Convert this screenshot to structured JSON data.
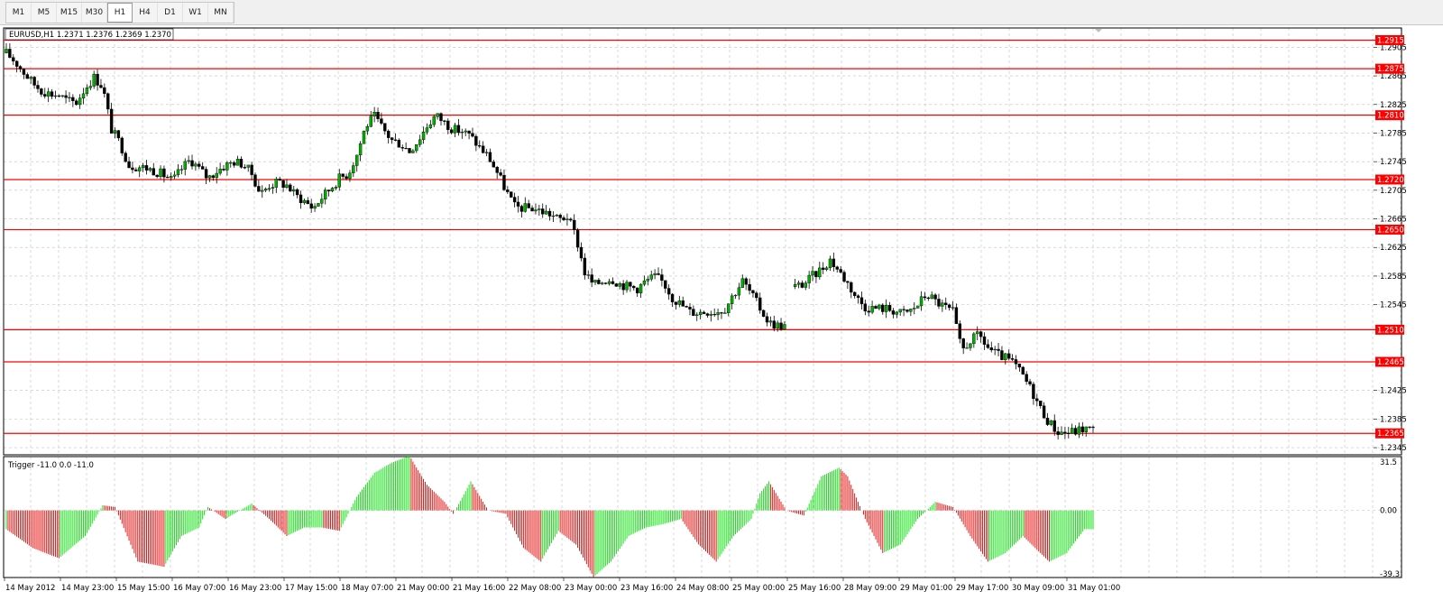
{
  "toolbar": {
    "timeframes": [
      {
        "label": "M1",
        "active": false
      },
      {
        "label": "M5",
        "active": false
      },
      {
        "label": "M15",
        "active": false
      },
      {
        "label": "M30",
        "active": false
      },
      {
        "label": "H1",
        "active": true
      },
      {
        "label": "H4",
        "active": false
      },
      {
        "label": "D1",
        "active": false
      },
      {
        "label": "W1",
        "active": false
      },
      {
        "label": "MN",
        "active": false
      }
    ]
  },
  "chart": {
    "header": "EURUSD,H1  1.2371 1.2376 1.2369 1.2370",
    "symbol": "EURUSD",
    "timeframe": "H1",
    "ohlc": {
      "open": 1.2371,
      "high": 1.2376,
      "low": 1.2369,
      "close": 1.237
    },
    "colors": {
      "bull": "#00b000",
      "bear": "#000000",
      "level": "#ff0000",
      "grid": "#c0c0c0",
      "hist_up": "#00e000",
      "hist_down": "#e00000"
    }
  },
  "price_axis": {
    "ticks": [
      "1.2905",
      "1.2865",
      "1.2825",
      "1.2785",
      "1.2745",
      "1.2705",
      "1.2665",
      "1.2625",
      "1.2585",
      "1.2545",
      "1.2425",
      "1.2385",
      "1.2345"
    ]
  },
  "levels": [
    {
      "price": 1.2915,
      "label": "1.2915"
    },
    {
      "price": 1.2875,
      "label": "1.2875"
    },
    {
      "price": 1.281,
      "label": "1.2810"
    },
    {
      "price": 1.272,
      "label": "1.2720"
    },
    {
      "price": 1.265,
      "label": "1.2650"
    },
    {
      "price": 1.251,
      "label": "1.2510"
    },
    {
      "price": 1.2465,
      "label": "1.2465"
    },
    {
      "price": 1.2365,
      "label": "1.2365"
    }
  ],
  "indicator": {
    "header": "Trigger -11.0 0.0 -11.0",
    "ticks": [
      "31.5",
      "0.00",
      "-39.3"
    ]
  },
  "time_axis": {
    "labels": [
      "14 May 2012",
      "14 May 23:00",
      "15 May 15:00",
      "16 May 07:00",
      "16 May 23:00",
      "17 May 15:00",
      "18 May 07:00",
      "21 May 00:00",
      "21 May 16:00",
      "22 May 08:00",
      "23 May 00:00",
      "23 May 16:00",
      "24 May 08:00",
      "25 May 00:00",
      "25 May 16:00",
      "28 May 09:00",
      "29 May 01:00",
      "29 May 17:00",
      "30 May 09:00",
      "31 May 01:00"
    ]
  },
  "chart_data": {
    "type": "candlestick",
    "title": "EURUSD,H1",
    "y_range": [
      1.2335,
      1.2932
    ],
    "price_path": [
      [
        0,
        1.2897
      ],
      [
        5,
        1.2885
      ],
      [
        10,
        1.287
      ],
      [
        15,
        1.2855
      ],
      [
        20,
        1.2845
      ],
      [
        25,
        1.284
      ],
      [
        30,
        1.2838
      ],
      [
        35,
        1.283
      ],
      [
        40,
        1.2828
      ],
      [
        45,
        1.2848
      ],
      [
        50,
        1.2863
      ],
      [
        55,
        1.285
      ],
      [
        60,
        1.279
      ],
      [
        65,
        1.277
      ],
      [
        70,
        1.274
      ],
      [
        75,
        1.2738
      ],
      [
        80,
        1.2736
      ],
      [
        85,
        1.2732
      ],
      [
        90,
        1.2726
      ],
      [
        95,
        1.2718
      ],
      [
        100,
        1.2735
      ],
      [
        105,
        1.2748
      ],
      [
        110,
        1.2735
      ],
      [
        115,
        1.2722
      ],
      [
        120,
        1.2732
      ],
      [
        125,
        1.274
      ],
      [
        130,
        1.2745
      ],
      [
        135,
        1.2742
      ],
      [
        140,
        1.2728
      ],
      [
        145,
        1.27
      ],
      [
        150,
        1.2712
      ],
      [
        155,
        1.2716
      ],
      [
        160,
        1.2712
      ],
      [
        165,
        1.2698
      ],
      [
        170,
        1.269
      ],
      [
        175,
        1.268
      ],
      [
        180,
        1.2695
      ],
      [
        185,
        1.2708
      ],
      [
        190,
        1.2722
      ],
      [
        195,
        1.2728
      ],
      [
        200,
        1.2755
      ],
      [
        205,
        1.2795
      ],
      [
        210,
        1.2808
      ],
      [
        215,
        1.279
      ],
      [
        220,
        1.2775
      ],
      [
        225,
        1.277
      ],
      [
        230,
        1.276
      ],
      [
        235,
        1.2775
      ],
      [
        240,
        1.2795
      ],
      [
        245,
        1.281
      ],
      [
        250,
        1.28
      ],
      [
        255,
        1.279
      ],
      [
        260,
        1.2788
      ],
      [
        265,
        1.278
      ],
      [
        270,
        1.2765
      ],
      [
        275,
        1.2752
      ],
      [
        280,
        1.273
      ],
      [
        285,
        1.2705
      ],
      [
        290,
        1.2682
      ],
      [
        295,
        1.268
      ],
      [
        300,
        1.268
      ],
      [
        305,
        1.2676
      ],
      [
        310,
        1.2672
      ],
      [
        315,
        1.2664
      ],
      [
        320,
        1.2668
      ],
      [
        325,
        1.264
      ],
      [
        330,
        1.259
      ],
      [
        335,
        1.2572
      ],
      [
        340,
        1.2578
      ],
      [
        345,
        1.2582
      ],
      [
        350,
        1.2574
      ],
      [
        355,
        1.257
      ],
      [
        360,
        1.2568
      ],
      [
        365,
        1.2578
      ],
      [
        370,
        1.2584
      ],
      [
        375,
        1.2576
      ],
      [
        380,
        1.2555
      ],
      [
        385,
        1.2545
      ],
      [
        390,
        1.2535
      ],
      [
        395,
        1.2534
      ],
      [
        400,
        1.2536
      ],
      [
        405,
        1.2535
      ],
      [
        410,
        1.254
      ],
      [
        415,
        1.256
      ],
      [
        420,
        1.2578
      ],
      [
        425,
        1.256
      ],
      [
        430,
        1.254
      ],
      [
        435,
        1.252
      ],
      [
        440,
        1.2516
      ],
      [
        445,
        1.2515
      ],
      [
        450,
        1.257
      ],
      [
        455,
        1.2574
      ],
      [
        460,
        1.2585
      ],
      [
        465,
        1.2595
      ],
      [
        470,
        1.2608
      ],
      [
        475,
        1.2592
      ],
      [
        480,
        1.2575
      ],
      [
        485,
        1.2555
      ],
      [
        490,
        1.2542
      ],
      [
        495,
        1.254
      ],
      [
        500,
        1.254
      ],
      [
        505,
        1.2538
      ],
      [
        510,
        1.2533
      ],
      [
        515,
        1.2535
      ],
      [
        520,
        1.2545
      ],
      [
        525,
        1.256
      ],
      [
        530,
        1.255
      ],
      [
        535,
        1.2542
      ],
      [
        540,
        1.2535
      ],
      [
        545,
        1.248
      ],
      [
        550,
        1.2495
      ],
      [
        555,
        1.2502
      ],
      [
        560,
        1.2485
      ],
      [
        565,
        1.2475
      ],
      [
        570,
        1.247
      ],
      [
        575,
        1.2462
      ],
      [
        580,
        1.2445
      ],
      [
        585,
        1.2425
      ],
      [
        590,
        1.24
      ],
      [
        595,
        1.238
      ],
      [
        600,
        1.2367
      ],
      [
        605,
        1.2366
      ],
      [
        610,
        1.2368
      ],
      [
        615,
        1.2372
      ],
      [
        620,
        1.237
      ]
    ],
    "indicator_path": [
      [
        0,
        -11
      ],
      [
        15,
        -22
      ],
      [
        30,
        -28
      ],
      [
        45,
        -15
      ],
      [
        55,
        3
      ],
      [
        62,
        2
      ],
      [
        75,
        -30
      ],
      [
        90,
        -33
      ],
      [
        100,
        -15
      ],
      [
        110,
        -10
      ],
      [
        115,
        2
      ],
      [
        125,
        -5
      ],
      [
        140,
        4
      ],
      [
        150,
        -5
      ],
      [
        160,
        -15
      ],
      [
        170,
        -10
      ],
      [
        180,
        -10
      ],
      [
        190,
        -12
      ],
      [
        200,
        8
      ],
      [
        210,
        22
      ],
      [
        220,
        28
      ],
      [
        230,
        32
      ],
      [
        240,
        15
      ],
      [
        250,
        5
      ],
      [
        255,
        -2
      ],
      [
        265,
        17
      ],
      [
        275,
        0
      ],
      [
        285,
        -2
      ],
      [
        295,
        -22
      ],
      [
        305,
        -30
      ],
      [
        315,
        -12
      ],
      [
        325,
        -20
      ],
      [
        335,
        -39
      ],
      [
        345,
        -30
      ],
      [
        355,
        -15
      ],
      [
        365,
        -10
      ],
      [
        375,
        -8
      ],
      [
        385,
        -5
      ],
      [
        395,
        -20
      ],
      [
        405,
        -30
      ],
      [
        415,
        -15
      ],
      [
        425,
        -5
      ],
      [
        430,
        10
      ],
      [
        435,
        17
      ],
      [
        445,
        0
      ],
      [
        455,
        -3
      ],
      [
        465,
        20
      ],
      [
        475,
        25
      ],
      [
        480,
        20
      ],
      [
        490,
        -5
      ],
      [
        500,
        -25
      ],
      [
        510,
        -20
      ],
      [
        520,
        -5
      ],
      [
        530,
        5
      ],
      [
        540,
        2
      ],
      [
        550,
        -15
      ],
      [
        560,
        -30
      ],
      [
        570,
        -25
      ],
      [
        580,
        -15
      ],
      [
        585,
        -20
      ],
      [
        595,
        -30
      ],
      [
        605,
        -25
      ],
      [
        615,
        -11
      ]
    ]
  }
}
